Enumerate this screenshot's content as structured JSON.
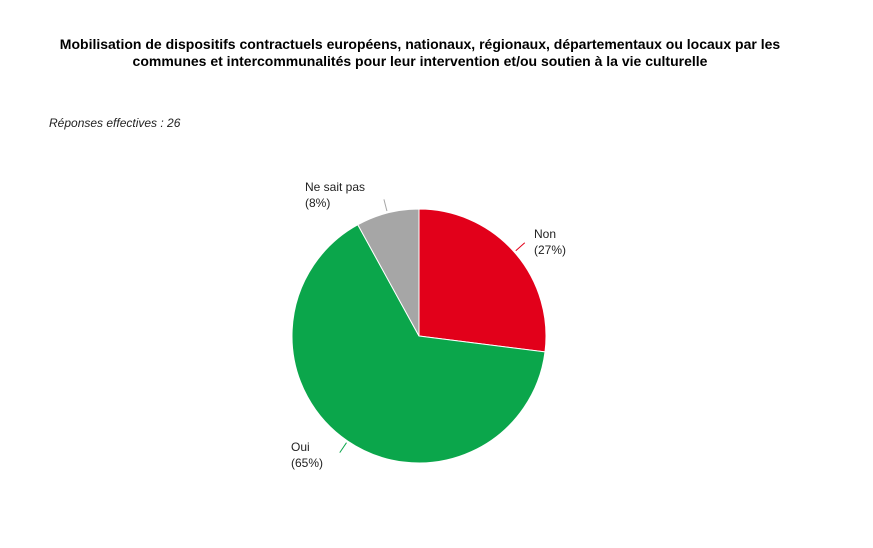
{
  "chart_data": {
    "type": "pie",
    "title": "Mobilisation de dispositifs contractuels européens, nationaux, régionaux, départementaux ou locaux par les communes et intercommunalités pour leur intervention et/ou soutien à la vie culturelle",
    "subtitle": "Réponses effectives : 26",
    "slices": [
      {
        "label": "Non",
        "value": 27,
        "value_label": "(27%)",
        "color": "#E2001A"
      },
      {
        "label": "Oui",
        "value": 65,
        "value_label": "(65%)",
        "color": "#0BA64B"
      },
      {
        "label": "Ne sait pas",
        "value": 8,
        "value_label": "(8%)",
        "color": "#A6A6A6"
      }
    ]
  }
}
